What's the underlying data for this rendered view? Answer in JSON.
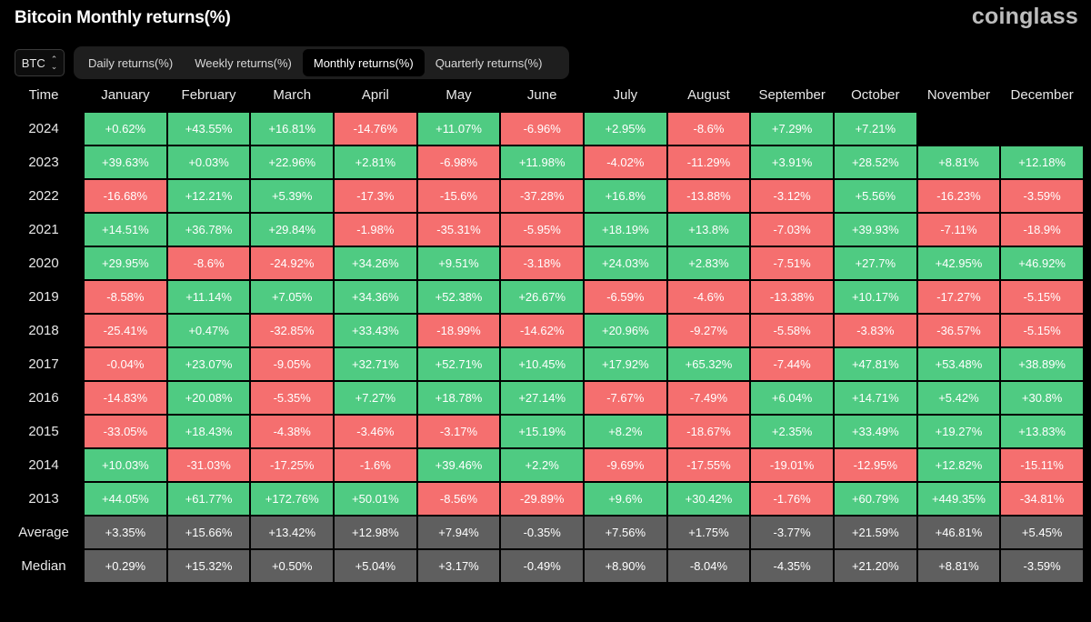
{
  "header": {
    "title": "Bitcoin Monthly returns(%)",
    "brand": "coinglass"
  },
  "controls": {
    "coin_select": "BTC",
    "tabs": [
      {
        "label": "Daily returns(%)",
        "active": false
      },
      {
        "label": "Weekly returns(%)",
        "active": false
      },
      {
        "label": "Monthly returns(%)",
        "active": true
      },
      {
        "label": "Quarterly returns(%)",
        "active": false
      }
    ]
  },
  "colors": {
    "positive": "#4fcb82",
    "negative": "#f56f6f",
    "summary": "#5f5f5f"
  },
  "table": {
    "corner_label": "Time",
    "months": [
      "January",
      "February",
      "March",
      "April",
      "May",
      "June",
      "July",
      "August",
      "September",
      "October",
      "November",
      "December"
    ],
    "rows": [
      {
        "label": "2024",
        "values": [
          "+0.62%",
          "+43.55%",
          "+16.81%",
          "-14.76%",
          "+11.07%",
          "-6.96%",
          "+2.95%",
          "-8.6%",
          "+7.29%",
          "+7.21%",
          "",
          ""
        ]
      },
      {
        "label": "2023",
        "values": [
          "+39.63%",
          "+0.03%",
          "+22.96%",
          "+2.81%",
          "-6.98%",
          "+11.98%",
          "-4.02%",
          "-11.29%",
          "+3.91%",
          "+28.52%",
          "+8.81%",
          "+12.18%"
        ]
      },
      {
        "label": "2022",
        "values": [
          "-16.68%",
          "+12.21%",
          "+5.39%",
          "-17.3%",
          "-15.6%",
          "-37.28%",
          "+16.8%",
          "-13.88%",
          "-3.12%",
          "+5.56%",
          "-16.23%",
          "-3.59%"
        ]
      },
      {
        "label": "2021",
        "values": [
          "+14.51%",
          "+36.78%",
          "+29.84%",
          "-1.98%",
          "-35.31%",
          "-5.95%",
          "+18.19%",
          "+13.8%",
          "-7.03%",
          "+39.93%",
          "-7.11%",
          "-18.9%"
        ]
      },
      {
        "label": "2020",
        "values": [
          "+29.95%",
          "-8.6%",
          "-24.92%",
          "+34.26%",
          "+9.51%",
          "-3.18%",
          "+24.03%",
          "+2.83%",
          "-7.51%",
          "+27.7%",
          "+42.95%",
          "+46.92%"
        ]
      },
      {
        "label": "2019",
        "values": [
          "-8.58%",
          "+11.14%",
          "+7.05%",
          "+34.36%",
          "+52.38%",
          "+26.67%",
          "-6.59%",
          "-4.6%",
          "-13.38%",
          "+10.17%",
          "-17.27%",
          "-5.15%"
        ]
      },
      {
        "label": "2018",
        "values": [
          "-25.41%",
          "+0.47%",
          "-32.85%",
          "+33.43%",
          "-18.99%",
          "-14.62%",
          "+20.96%",
          "-9.27%",
          "-5.58%",
          "-3.83%",
          "-36.57%",
          "-5.15%"
        ]
      },
      {
        "label": "2017",
        "values": [
          "-0.04%",
          "+23.07%",
          "-9.05%",
          "+32.71%",
          "+52.71%",
          "+10.45%",
          "+17.92%",
          "+65.32%",
          "-7.44%",
          "+47.81%",
          "+53.48%",
          "+38.89%"
        ]
      },
      {
        "label": "2016",
        "values": [
          "-14.83%",
          "+20.08%",
          "-5.35%",
          "+7.27%",
          "+18.78%",
          "+27.14%",
          "-7.67%",
          "-7.49%",
          "+6.04%",
          "+14.71%",
          "+5.42%",
          "+30.8%"
        ]
      },
      {
        "label": "2015",
        "values": [
          "-33.05%",
          "+18.43%",
          "-4.38%",
          "-3.46%",
          "-3.17%",
          "+15.19%",
          "+8.2%",
          "-18.67%",
          "+2.35%",
          "+33.49%",
          "+19.27%",
          "+13.83%"
        ]
      },
      {
        "label": "2014",
        "values": [
          "+10.03%",
          "-31.03%",
          "-17.25%",
          "-1.6%",
          "+39.46%",
          "+2.2%",
          "-9.69%",
          "-17.55%",
          "-19.01%",
          "-12.95%",
          "+12.82%",
          "-15.11%"
        ]
      },
      {
        "label": "2013",
        "values": [
          "+44.05%",
          "+61.77%",
          "+172.76%",
          "+50.01%",
          "-8.56%",
          "-29.89%",
          "+9.6%",
          "+30.42%",
          "-1.76%",
          "+60.79%",
          "+449.35%",
          "-34.81%"
        ]
      }
    ],
    "summary_rows": [
      {
        "label": "Average",
        "values": [
          "+3.35%",
          "+15.66%",
          "+13.42%",
          "+12.98%",
          "+7.94%",
          "-0.35%",
          "+7.56%",
          "+1.75%",
          "-3.77%",
          "+21.59%",
          "+46.81%",
          "+5.45%"
        ]
      },
      {
        "label": "Median",
        "values": [
          "+0.29%",
          "+15.32%",
          "+0.50%",
          "+5.04%",
          "+3.17%",
          "-0.49%",
          "+8.90%",
          "-8.04%",
          "-4.35%",
          "+21.20%",
          "+8.81%",
          "-3.59%"
        ]
      }
    ]
  }
}
